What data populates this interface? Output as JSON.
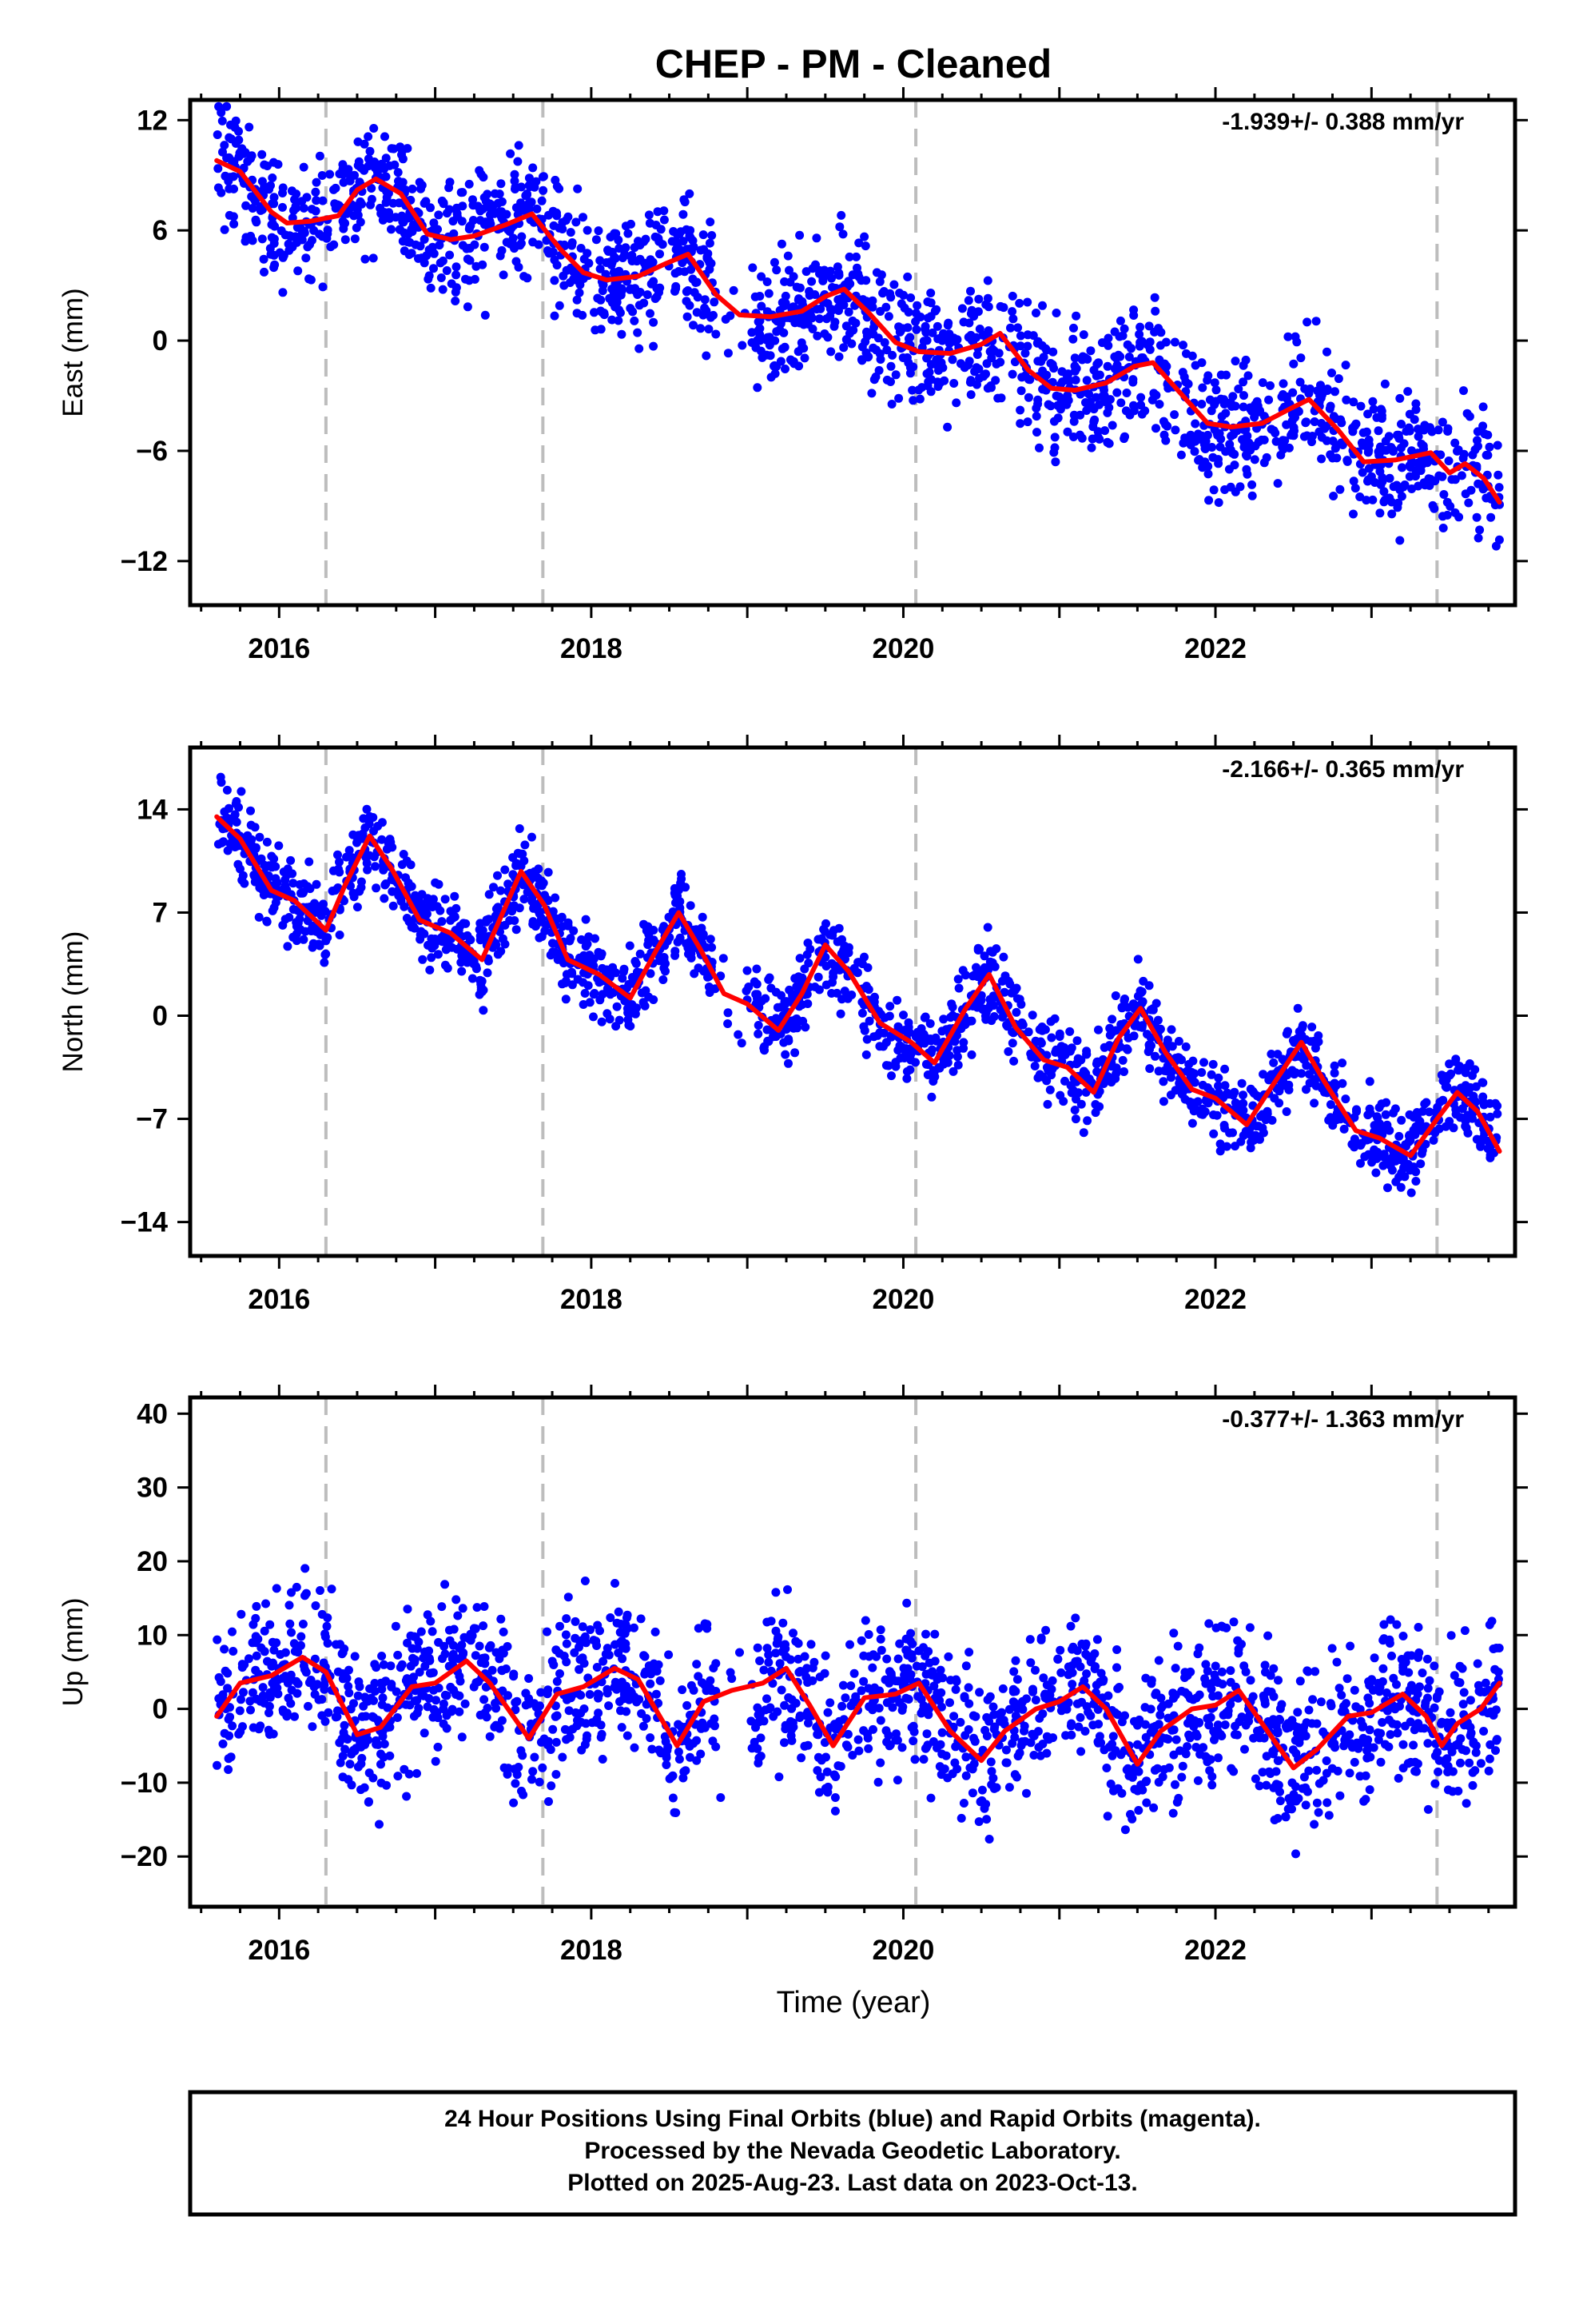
{
  "title": "CHEP  - PM - Cleaned",
  "xlabel": "Time (year)",
  "footer": {
    "line1": "24 Hour Positions Using Final Orbits (blue) and Rapid Orbits (magenta).",
    "line2": "Processed by the Nevada Geodetic Laboratory.",
    "line3": "Plotted on 2025-Aug-23. Last data on 2023-Oct-13."
  },
  "chart_data": [
    {
      "type": "scatter",
      "ylabel": "East (mm)",
      "rate_label": "-1.939+/- 0.388 mm/yr",
      "xlim": [
        2015.43,
        2023.92
      ],
      "ylim": [
        -14.4,
        13.1
      ],
      "xticks": [
        2016,
        2018,
        2020,
        2022
      ],
      "yticks": [
        -12,
        -6,
        0,
        6,
        12
      ],
      "steps": [
        2016.3,
        2017.69,
        2020.08,
        2023.42
      ],
      "fit": [
        [
          2015.6,
          9.8
        ],
        [
          2015.75,
          9.2
        ],
        [
          2015.95,
          7.0
        ],
        [
          2016.05,
          6.4
        ],
        [
          2016.2,
          6.5
        ],
        [
          2016.38,
          6.8
        ],
        [
          2016.5,
          8.2
        ],
        [
          2016.62,
          8.8
        ],
        [
          2016.78,
          8.0
        ],
        [
          2016.95,
          5.8
        ],
        [
          2017.1,
          5.5
        ],
        [
          2017.25,
          5.7
        ],
        [
          2017.45,
          6.3
        ],
        [
          2017.62,
          6.9
        ],
        [
          2017.8,
          5.0
        ],
        [
          2017.95,
          3.7
        ],
        [
          2018.1,
          3.3
        ],
        [
          2018.3,
          3.5
        ],
        [
          2018.48,
          4.2
        ],
        [
          2018.62,
          4.7
        ],
        [
          2018.8,
          2.5
        ],
        [
          2018.95,
          1.4
        ],
        [
          2019.15,
          1.3
        ],
        [
          2019.35,
          1.6
        ],
        [
          2019.5,
          2.4
        ],
        [
          2019.62,
          2.8
        ],
        [
          2019.78,
          1.5
        ],
        [
          2019.95,
          -0.1
        ],
        [
          2020.1,
          -0.6
        ],
        [
          2020.3,
          -0.7
        ],
        [
          2020.5,
          -0.2
        ],
        [
          2020.62,
          0.4
        ],
        [
          2020.8,
          -1.6
        ],
        [
          2020.95,
          -2.6
        ],
        [
          2021.1,
          -2.7
        ],
        [
          2021.3,
          -2.3
        ],
        [
          2021.48,
          -1.4
        ],
        [
          2021.6,
          -1.2
        ],
        [
          2021.78,
          -2.9
        ],
        [
          2021.95,
          -4.5
        ],
        [
          2022.1,
          -4.7
        ],
        [
          2022.3,
          -4.5
        ],
        [
          2022.48,
          -3.7
        ],
        [
          2022.6,
          -3.2
        ],
        [
          2022.78,
          -4.8
        ],
        [
          2022.95,
          -6.6
        ],
        [
          2023.15,
          -6.5
        ],
        [
          2023.38,
          -6.1
        ],
        [
          2023.5,
          -7.2
        ],
        [
          2023.6,
          -6.7
        ],
        [
          2023.72,
          -7.5
        ],
        [
          2023.82,
          -8.8
        ]
      ],
      "scatter": {
        "noise": 1.7,
        "start": 2015.6,
        "end": 2023.82,
        "count": 1900,
        "gaps": [
          [
            2018.8,
            2019.05
          ]
        ]
      }
    },
    {
      "type": "scatter",
      "ylabel": "North (mm)",
      "rate_label": "-2.166+/- 0.365 mm/yr",
      "xlim": [
        2015.43,
        2023.92
      ],
      "ylim": [
        -16.3,
        18.2
      ],
      "xticks": [
        2016,
        2018,
        2020,
        2022
      ],
      "yticks": [
        -14,
        -7,
        0,
        7,
        14
      ],
      "steps": [
        2016.3,
        2017.69,
        2020.08,
        2023.42
      ],
      "fit": [
        [
          2015.6,
          13.5
        ],
        [
          2015.75,
          12.0
        ],
        [
          2015.95,
          8.5
        ],
        [
          2016.1,
          7.8
        ],
        [
          2016.3,
          5.8
        ],
        [
          2016.42,
          8.8
        ],
        [
          2016.58,
          12.2
        ],
        [
          2016.72,
          10.0
        ],
        [
          2016.9,
          6.5
        ],
        [
          2017.1,
          5.6
        ],
        [
          2017.3,
          3.8
        ],
        [
          2017.55,
          9.8
        ],
        [
          2017.7,
          7.5
        ],
        [
          2017.85,
          3.8
        ],
        [
          2018.05,
          2.8
        ],
        [
          2018.25,
          1.2
        ],
        [
          2018.42,
          4.5
        ],
        [
          2018.56,
          7.0
        ],
        [
          2018.7,
          4.5
        ],
        [
          2018.85,
          1.5
        ],
        [
          2019.0,
          0.8
        ],
        [
          2019.2,
          -1.0
        ],
        [
          2019.35,
          1.5
        ],
        [
          2019.5,
          4.8
        ],
        [
          2019.65,
          3.0
        ],
        [
          2019.85,
          -0.5
        ],
        [
          2020.05,
          -1.8
        ],
        [
          2020.2,
          -3.2
        ],
        [
          2020.4,
          0.5
        ],
        [
          2020.55,
          2.8
        ],
        [
          2020.72,
          -0.8
        ],
        [
          2020.9,
          -3.0
        ],
        [
          2021.05,
          -3.5
        ],
        [
          2021.22,
          -5.2
        ],
        [
          2021.38,
          -1.5
        ],
        [
          2021.52,
          0.5
        ],
        [
          2021.68,
          -2.5
        ],
        [
          2021.85,
          -5.0
        ],
        [
          2022.0,
          -5.6
        ],
        [
          2022.2,
          -7.4
        ],
        [
          2022.38,
          -4.5
        ],
        [
          2022.55,
          -1.8
        ],
        [
          2022.7,
          -4.5
        ],
        [
          2022.9,
          -7.8
        ],
        [
          2023.05,
          -8.3
        ],
        [
          2023.25,
          -9.5
        ],
        [
          2023.42,
          -7.0
        ],
        [
          2023.55,
          -5.2
        ],
        [
          2023.68,
          -6.5
        ],
        [
          2023.82,
          -9.2
        ]
      ],
      "scatter": {
        "noise": 1.4,
        "start": 2015.6,
        "end": 2023.82,
        "count": 1900,
        "gaps": [
          [
            2018.8,
            2019.05
          ]
        ]
      }
    },
    {
      "type": "scatter",
      "ylabel": "Up (mm)",
      "rate_label": "-0.377+/- 1.363 mm/yr",
      "xlim": [
        2015.43,
        2023.92
      ],
      "ylim": [
        -26.8,
        42.2
      ],
      "xticks": [
        2016,
        2018,
        2020,
        2022
      ],
      "yticks": [
        -20,
        -10,
        0,
        10,
        20,
        30,
        40
      ],
      "steps": [
        2016.3,
        2017.69,
        2020.08,
        2023.42
      ],
      "fit": [
        [
          2015.6,
          -1.0
        ],
        [
          2015.75,
          3.5
        ],
        [
          2015.95,
          4.5
        ],
        [
          2016.15,
          7.0
        ],
        [
          2016.3,
          5.0
        ],
        [
          2016.5,
          -3.5
        ],
        [
          2016.65,
          -2.5
        ],
        [
          2016.85,
          3.0
        ],
        [
          2017.0,
          3.5
        ],
        [
          2017.2,
          6.5
        ],
        [
          2017.35,
          3.5
        ],
        [
          2017.6,
          -4.0
        ],
        [
          2017.78,
          2.0
        ],
        [
          2017.95,
          3.0
        ],
        [
          2018.15,
          5.5
        ],
        [
          2018.3,
          4.0
        ],
        [
          2018.55,
          -5.0
        ],
        [
          2018.72,
          1.0
        ],
        [
          2018.9,
          2.5
        ],
        [
          2019.1,
          3.5
        ],
        [
          2019.25,
          5.5
        ],
        [
          2019.4,
          0.5
        ],
        [
          2019.55,
          -5.0
        ],
        [
          2019.75,
          1.5
        ],
        [
          2019.95,
          2.0
        ],
        [
          2020.1,
          3.5
        ],
        [
          2020.3,
          -3.0
        ],
        [
          2020.5,
          -7.0
        ],
        [
          2020.65,
          -3.0
        ],
        [
          2020.85,
          0.0
        ],
        [
          2021.0,
          1.0
        ],
        [
          2021.15,
          3.0
        ],
        [
          2021.3,
          0.0
        ],
        [
          2021.5,
          -7.5
        ],
        [
          2021.65,
          -3.0
        ],
        [
          2021.85,
          0.0
        ],
        [
          2022.0,
          0.5
        ],
        [
          2022.15,
          2.5
        ],
        [
          2022.3,
          -2.0
        ],
        [
          2022.5,
          -8.0
        ],
        [
          2022.65,
          -5.5
        ],
        [
          2022.85,
          -1.0
        ],
        [
          2023.0,
          -0.5
        ],
        [
          2023.2,
          2.0
        ],
        [
          2023.35,
          -1.0
        ],
        [
          2023.45,
          -5.0
        ],
        [
          2023.55,
          -2.0
        ],
        [
          2023.7,
          0.0
        ],
        [
          2023.82,
          3.5
        ]
      ],
      "scatter": {
        "noise": 5.2,
        "start": 2015.6,
        "end": 2023.82,
        "count": 1900,
        "gaps": [
          [
            2018.8,
            2019.05
          ]
        ]
      }
    }
  ],
  "colors": {
    "points": "#0000ff",
    "fit": "#ff0000",
    "steps": "#bdbdbd",
    "frame": "#000000"
  }
}
